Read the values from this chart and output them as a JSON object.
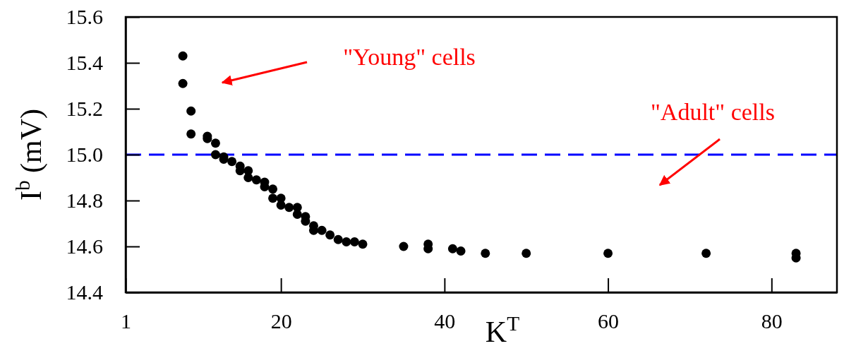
{
  "chart_data": {
    "type": "scatter",
    "xlabel": "K$^{T}$",
    "ylabel": "I$^{b}$ (mV)",
    "xlim": [
      1,
      88
    ],
    "ylim": [
      14.4,
      15.6
    ],
    "xticks": [
      1,
      20,
      40,
      60,
      80
    ],
    "yticks": [
      14.4,
      14.6,
      14.8,
      {
        "value": 15.0,
        "label": "15.0"
      },
      15.2,
      15.4,
      15.6
    ],
    "series": [
      {
        "color": "#000000",
        "x": [
          8,
          8,
          9,
          9,
          11,
          11,
          12,
          12,
          13,
          13,
          14,
          15,
          15,
          16,
          16,
          17,
          18,
          18,
          19,
          19,
          20,
          20,
          21,
          22,
          22,
          23,
          23,
          24,
          24,
          25,
          26,
          27,
          28,
          29,
          30,
          35,
          38,
          38,
          41,
          42,
          45,
          50,
          60,
          72,
          83,
          83
        ],
        "values": [
          15.43,
          15.31,
          15.19,
          15.09,
          15.08,
          15.07,
          15.05,
          15.0,
          14.99,
          14.98,
          14.97,
          14.95,
          14.93,
          14.93,
          14.9,
          14.89,
          14.88,
          14.86,
          14.85,
          14.81,
          14.81,
          14.78,
          14.77,
          14.77,
          14.74,
          14.73,
          14.71,
          14.69,
          14.67,
          14.67,
          14.65,
          14.63,
          14.62,
          14.62,
          14.61,
          14.6,
          14.61,
          14.59,
          14.59,
          14.58,
          14.57,
          14.57,
          14.57,
          14.57,
          14.57,
          14.55
        ]
      }
    ],
    "marker": "circle",
    "ref_lines": [
      {
        "axis": "y",
        "value": 15.0,
        "color": "#0000ff",
        "line_style": "dashed"
      }
    ],
    "annotations": [
      "\"Young\" cells",
      "\"Adult\" cells"
    ]
  }
}
